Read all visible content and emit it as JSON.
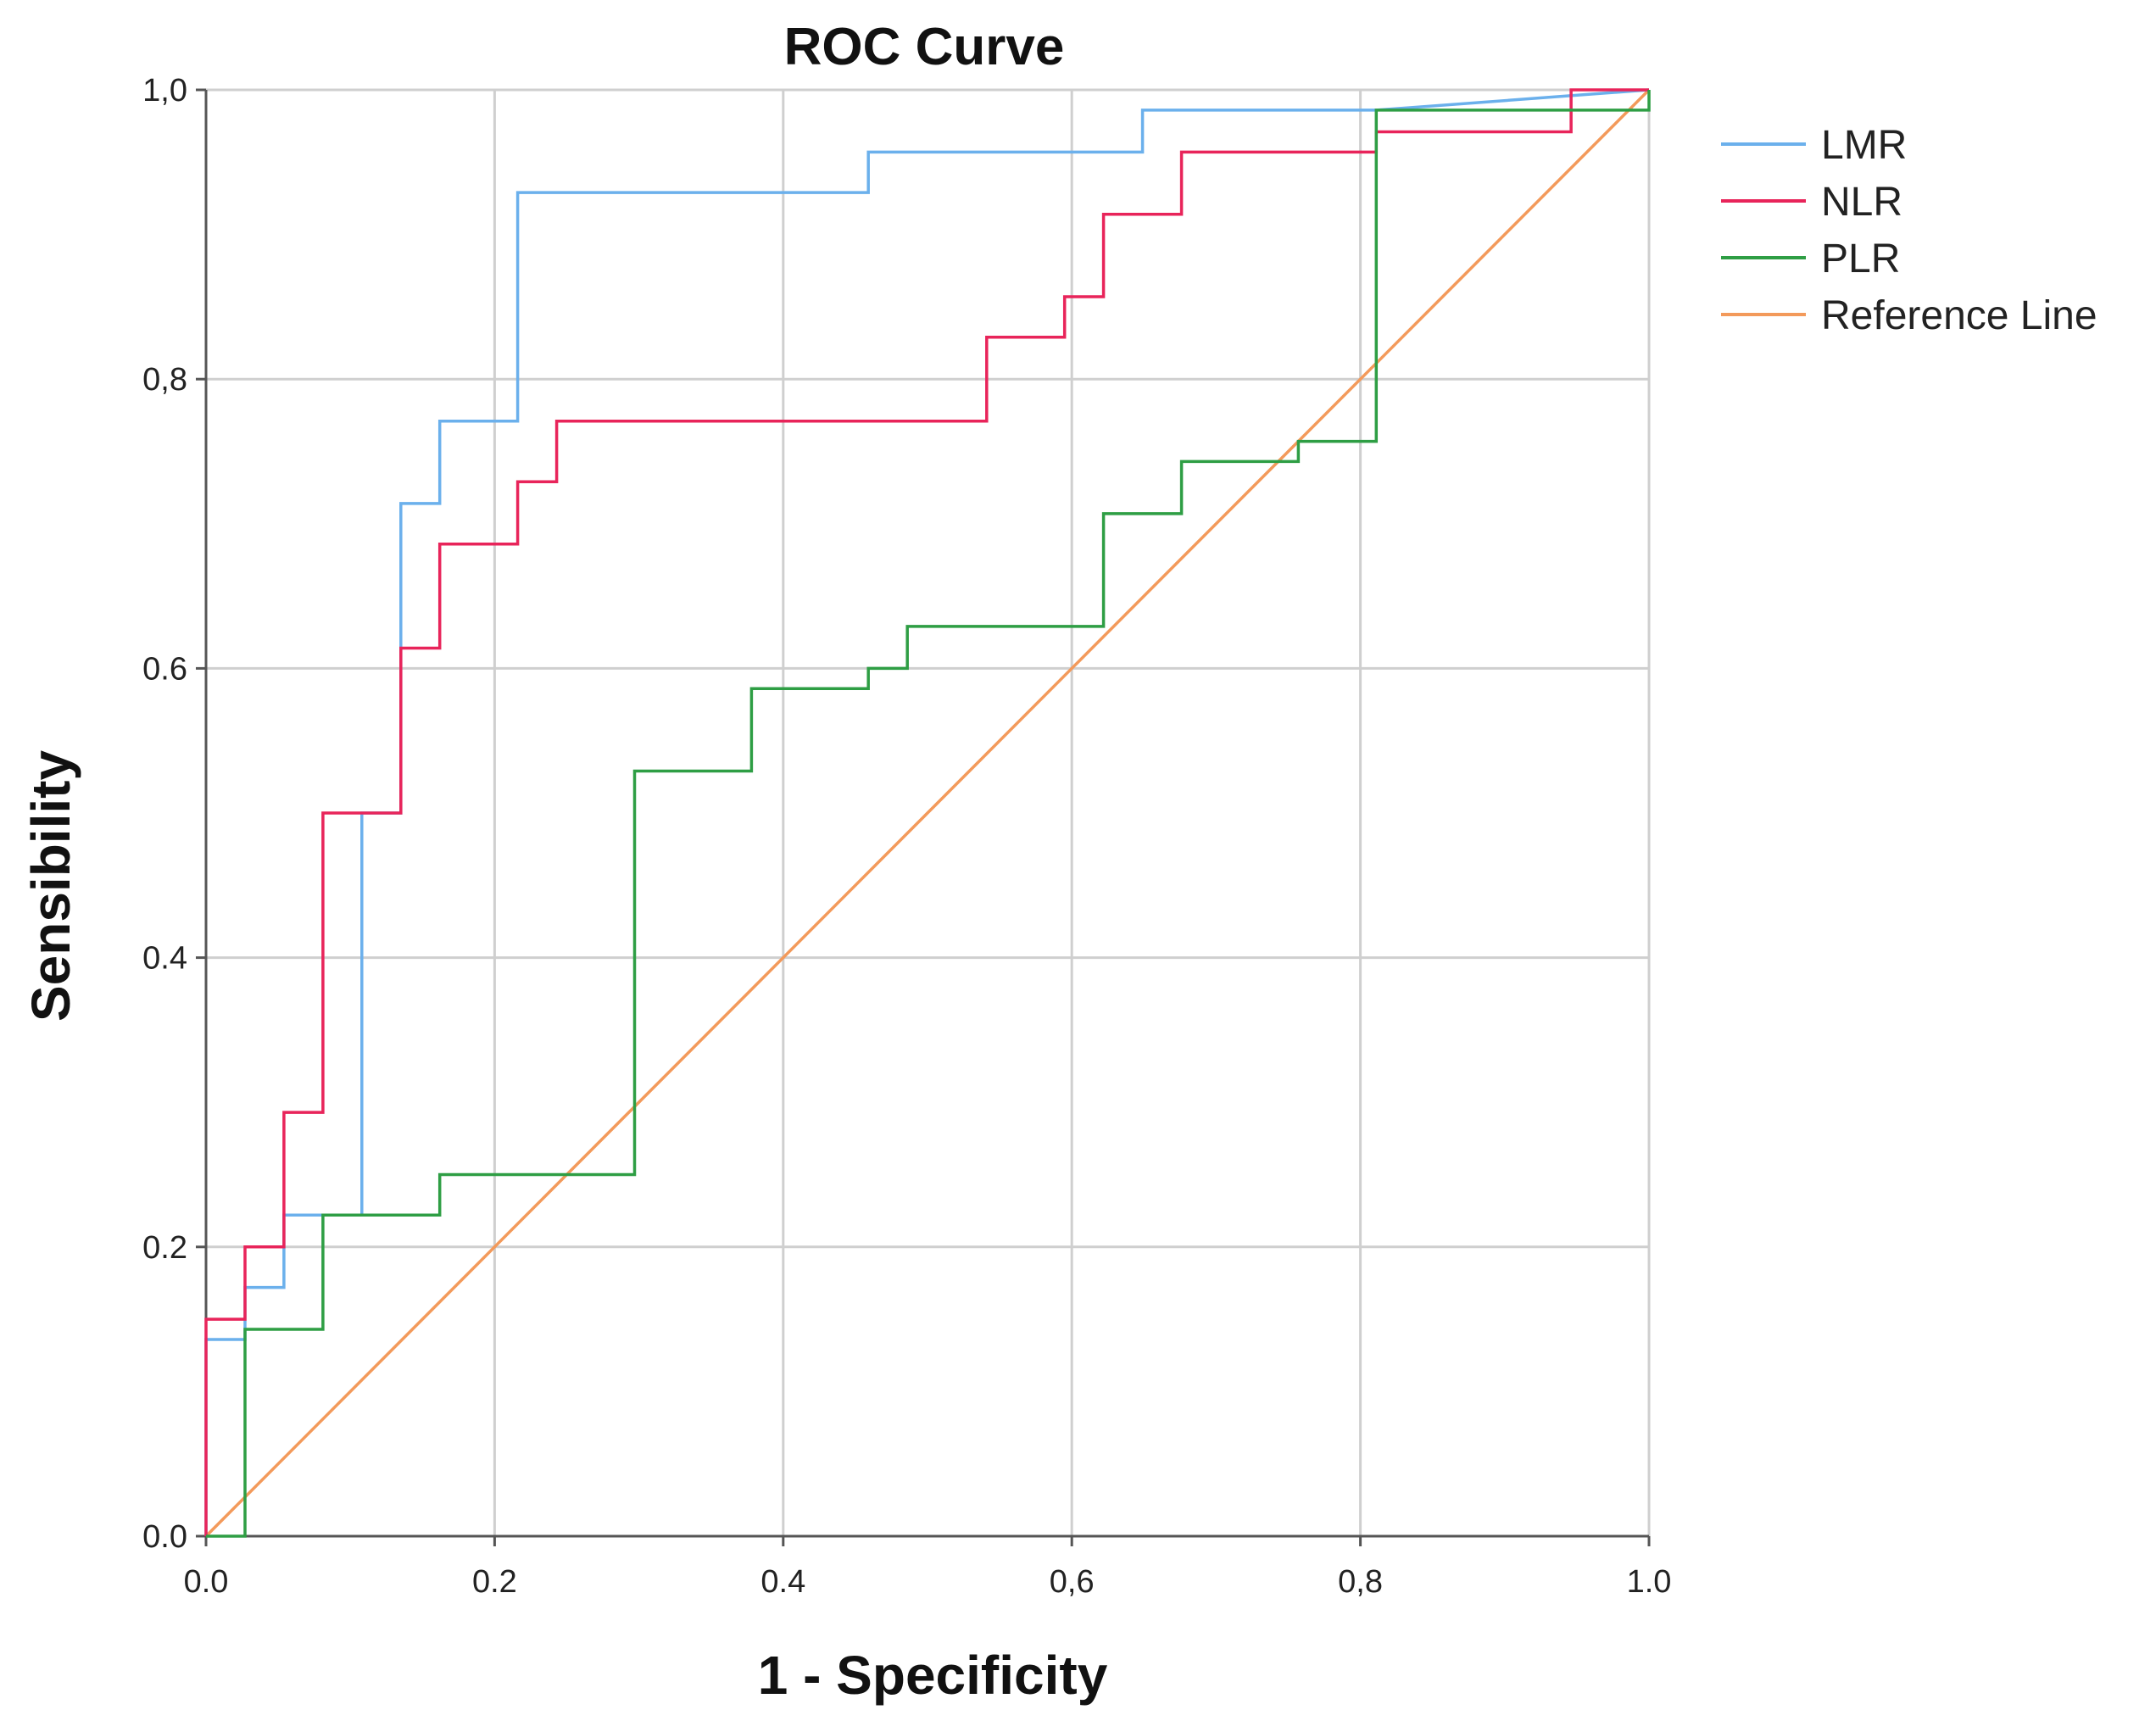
{
  "chart_data": {
    "type": "line",
    "title": "ROC Curve",
    "xlabel": "1 - Specificity",
    "ylabel": "Sensibility",
    "xlim": [
      0,
      1
    ],
    "ylim": [
      0,
      1
    ],
    "grid": true,
    "legend_position": "right",
    "x_ticks": [
      0,
      0.2,
      0.4,
      0.6,
      0.8,
      1.0
    ],
    "y_ticks": [
      0,
      0.2,
      0.4,
      0.6,
      0.8,
      1.0
    ],
    "x_tick_labels": [
      "0.0",
      "0.2",
      "0.4",
      "0,6",
      "0,8",
      "1.0"
    ],
    "y_tick_labels": [
      "0.0",
      "0.2",
      "0.4",
      "0.6",
      "0,8",
      "1,0"
    ],
    "series": [
      {
        "name": "LMR",
        "color": "#6bb0ec",
        "x": [
          0,
          0,
          0.027,
          0.027,
          0.054,
          0.054,
          0.108,
          0.108,
          0.135,
          0.135,
          0.162,
          0.162,
          0.216,
          0.216,
          0.459,
          0.459,
          0.649,
          0.649,
          0.811,
          1.0
        ],
        "y": [
          0,
          0.136,
          0.136,
          0.172,
          0.172,
          0.222,
          0.222,
          0.5,
          0.5,
          0.714,
          0.714,
          0.771,
          0.771,
          0.929,
          0.929,
          0.957,
          0.957,
          0.986,
          0.986,
          1.0
        ]
      },
      {
        "name": "NLR",
        "color": "#e8245a",
        "x": [
          0,
          0,
          0.027,
          0.027,
          0.054,
          0.054,
          0.081,
          0.081,
          0.135,
          0.135,
          0.162,
          0.162,
          0.216,
          0.216,
          0.243,
          0.243,
          0.541,
          0.541,
          0.595,
          0.595,
          0.622,
          0.622,
          0.676,
          0.676,
          0.811,
          0.811,
          0.946,
          0.946,
          1.0
        ],
        "y": [
          0,
          0.15,
          0.15,
          0.2,
          0.2,
          0.293,
          0.293,
          0.5,
          0.5,
          0.614,
          0.614,
          0.686,
          0.686,
          0.729,
          0.729,
          0.771,
          0.771,
          0.829,
          0.829,
          0.857,
          0.857,
          0.914,
          0.914,
          0.957,
          0.957,
          0.971,
          0.971,
          1.0,
          1.0
        ]
      },
      {
        "name": "PLR",
        "color": "#2e9e44",
        "x": [
          0,
          0.027,
          0.027,
          0.081,
          0.081,
          0.162,
          0.162,
          0.297,
          0.297,
          0.378,
          0.378,
          0.459,
          0.459,
          0.486,
          0.486,
          0.622,
          0.622,
          0.676,
          0.676,
          0.757,
          0.757,
          0.811,
          0.811,
          1.0,
          1.0
        ],
        "y": [
          0,
          0,
          0.143,
          0.143,
          0.222,
          0.222,
          0.25,
          0.25,
          0.529,
          0.529,
          0.586,
          0.586,
          0.6,
          0.6,
          0.629,
          0.629,
          0.707,
          0.707,
          0.743,
          0.743,
          0.757,
          0.757,
          0.986,
          0.986,
          1.0
        ]
      },
      {
        "name": "Reference Line",
        "color": "#f39a5b",
        "x": [
          0,
          1
        ],
        "y": [
          0,
          1
        ]
      }
    ]
  }
}
